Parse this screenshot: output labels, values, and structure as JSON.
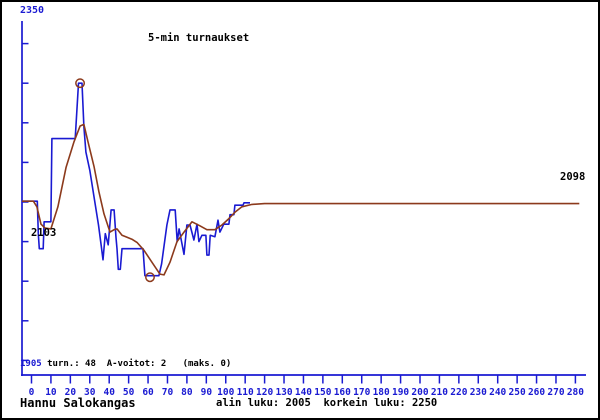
{
  "title": "5-min turnaukset",
  "colors": {
    "blue": "#1a1ad2",
    "brown": "#8c3a1c",
    "black": "#000000",
    "background": "#ffffff",
    "border": "#000000"
  },
  "y_axis": {
    "max_label": "2350",
    "min_label": "1905",
    "tick_values": [
      2300,
      2250,
      2200,
      2150,
      2100,
      2050,
      2000,
      1950,
      1900
    ]
  },
  "x_axis": {
    "tick_values": [
      0,
      10,
      20,
      30,
      40,
      50,
      60,
      70,
      80,
      90,
      100,
      110,
      120,
      130,
      140,
      150,
      160,
      170,
      180,
      190,
      200,
      210,
      220,
      230,
      240,
      250,
      260,
      270,
      280
    ]
  },
  "annotations": {
    "start_value": "2103",
    "end_value": "2098",
    "stats_text": " turn.: 48  A-voitot: 2   (maks. 0)"
  },
  "footer": {
    "player": "Hannu Salokangas",
    "range_text": "alin luku: 2005  korkein luku: 2250"
  },
  "chart_data": {
    "type": "line",
    "title": "5-min turnaukset",
    "xlabel": "",
    "ylabel": "",
    "x_range": [
      0,
      285
    ],
    "y_range": [
      1905,
      2350
    ],
    "y_tick_step": 50,
    "grid": false,
    "legend": false,
    "summary": {
      "tournaments": 48,
      "a_wins": 2,
      "maks": 0,
      "lowest": 2005,
      "highest": 2250,
      "first_value": 2103,
      "last_value": 2098
    },
    "series": [
      {
        "name": "rating",
        "color": "blue",
        "points": [
          [
            0,
            2101
          ],
          [
            2,
            2101
          ],
          [
            3,
            2101
          ],
          [
            3.5,
            2060
          ],
          [
            4,
            2041
          ],
          [
            6,
            2041
          ],
          [
            6.5,
            2075
          ],
          [
            10,
            2075
          ],
          [
            10.5,
            2180
          ],
          [
            22.5,
            2180
          ],
          [
            24.2,
            2250
          ],
          [
            26,
            2250
          ],
          [
            27,
            2195
          ],
          [
            28,
            2163
          ],
          [
            30,
            2140
          ],
          [
            32,
            2109
          ],
          [
            34.5,
            2071
          ],
          [
            36,
            2043
          ],
          [
            36.8,
            2027
          ],
          [
            38,
            2060
          ],
          [
            39.5,
            2046
          ],
          [
            41,
            2090
          ],
          [
            42.5,
            2090
          ],
          [
            43.5,
            2055
          ],
          [
            44,
            2041
          ],
          [
            44.7,
            2015
          ],
          [
            45.7,
            2015
          ],
          [
            46.6,
            2041
          ],
          [
            57.4,
            2041
          ],
          [
            58.4,
            2007
          ],
          [
            65.6,
            2007
          ],
          [
            67,
            2022
          ],
          [
            69.7,
            2071
          ],
          [
            71.3,
            2090
          ],
          [
            74,
            2090
          ],
          [
            75,
            2050
          ],
          [
            76,
            2066
          ],
          [
            78.5,
            2034
          ],
          [
            80,
            2071
          ],
          [
            81.6,
            2071
          ],
          [
            83.6,
            2052
          ],
          [
            85.2,
            2072
          ],
          [
            86.2,
            2050
          ],
          [
            87.7,
            2058
          ],
          [
            89.8,
            2058
          ],
          [
            90.3,
            2033
          ],
          [
            91.4,
            2033
          ],
          [
            92,
            2058
          ],
          [
            94.4,
            2056
          ],
          [
            96,
            2077
          ],
          [
            97,
            2062
          ],
          [
            99,
            2072
          ],
          [
            101.6,
            2072
          ],
          [
            102.2,
            2084
          ],
          [
            104.2,
            2084
          ],
          [
            104.7,
            2096
          ],
          [
            108.9,
            2096
          ],
          [
            109.4,
            2099
          ],
          [
            112.5,
            2099
          ]
        ]
      },
      {
        "name": "trend",
        "color": "brown",
        "points": [
          [
            0,
            2101
          ],
          [
            1,
            2101
          ],
          [
            2.8,
            2094
          ],
          [
            4.9,
            2072
          ],
          [
            7,
            2067
          ],
          [
            10,
            2066
          ],
          [
            13.6,
            2094
          ],
          [
            17.8,
            2144
          ],
          [
            21.9,
            2176
          ],
          [
            25,
            2196
          ],
          [
            27,
            2198
          ],
          [
            29.1,
            2176
          ],
          [
            32.2,
            2145
          ],
          [
            34.7,
            2113
          ],
          [
            37.3,
            2085
          ],
          [
            40.4,
            2062
          ],
          [
            42.5,
            2065
          ],
          [
            44,
            2066
          ],
          [
            46.6,
            2058
          ],
          [
            51.7,
            2053
          ],
          [
            54.3,
            2049
          ],
          [
            57.9,
            2039
          ],
          [
            62,
            2024
          ],
          [
            66.1,
            2009
          ],
          [
            68.2,
            2008
          ],
          [
            71.3,
            2024
          ],
          [
            74.9,
            2050
          ],
          [
            78.5,
            2062
          ],
          [
            82.6,
            2075
          ],
          [
            86.7,
            2070
          ],
          [
            90.3,
            2065
          ],
          [
            94.4,
            2065
          ],
          [
            98,
            2071
          ],
          [
            101.6,
            2079
          ],
          [
            104.7,
            2087
          ],
          [
            108.3,
            2094
          ],
          [
            113.5,
            2097
          ],
          [
            120,
            2098
          ],
          [
            282,
            2098
          ]
        ]
      }
    ],
    "markers": [
      {
        "name": "highest",
        "t": 25,
        "value": 2250
      },
      {
        "name": "lowest",
        "t": 61,
        "value": 2005
      }
    ]
  }
}
